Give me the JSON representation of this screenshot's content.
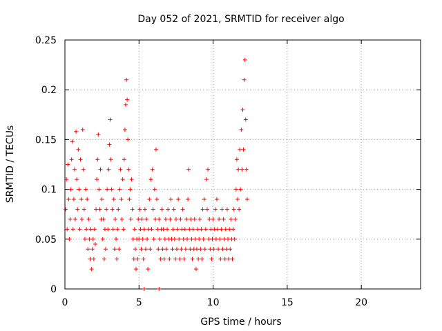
{
  "chart_data": {
    "type": "scatter",
    "title": "Day 052 of 2021, SRMTID for receiver algo",
    "xlabel": "GPS time / hours",
    "ylabel": "SRMTID / TECUs",
    "xlim": [
      0,
      24
    ],
    "ylim": [
      0,
      0.25
    ],
    "xticks": [
      0,
      5,
      10,
      15,
      20
    ],
    "xtick_labels": [
      "0",
      "5",
      "10",
      "15",
      "20"
    ],
    "yticks": [
      0,
      0.05,
      0.1,
      0.15,
      0.2,
      0.25
    ],
    "ytick_labels": [
      "0",
      "0.05",
      "0.1",
      "0.15",
      "0.2",
      "0.25"
    ],
    "grid": true,
    "marker": "+",
    "color": "#ff0000",
    "series": [
      {
        "name": "SRMTID",
        "points": [
          [
            0.05,
            0.08
          ],
          [
            0.1,
            0.11
          ],
          [
            0.15,
            0.06
          ],
          [
            0.2,
            0.125
          ],
          [
            0.25,
            0.09
          ],
          [
            0.3,
            0.05
          ],
          [
            0.35,
            0.07
          ],
          [
            0.4,
            0.1
          ],
          [
            0.45,
            0.13
          ],
          [
            0.5,
            0.148
          ],
          [
            0.55,
            0.06
          ],
          [
            0.6,
            0.09
          ],
          [
            0.65,
            0.12
          ],
          [
            0.7,
            0.07
          ],
          [
            0.75,
            0.158
          ],
          [
            0.8,
            0.11
          ],
          [
            0.85,
            0.08
          ],
          [
            0.9,
            0.14
          ],
          [
            0.95,
            0.1
          ],
          [
            1.0,
            0.06
          ],
          [
            1.05,
            0.13
          ],
          [
            1.1,
            0.09
          ],
          [
            1.15,
            0.07
          ],
          [
            1.2,
            0.16
          ],
          [
            1.25,
            0.12
          ],
          [
            1.3,
            0.08
          ],
          [
            1.35,
            0.05
          ],
          [
            1.4,
            0.1
          ],
          [
            1.45,
            0.06
          ],
          [
            1.5,
            0.09
          ],
          [
            1.55,
            0.04
          ],
          [
            1.6,
            0.07
          ],
          [
            1.65,
            0.05
          ],
          [
            1.7,
            0.03
          ],
          [
            1.75,
            0.06
          ],
          [
            1.8,
            0.02
          ],
          [
            1.85,
            0.04
          ],
          [
            1.9,
            0.05
          ],
          [
            1.95,
            0.03
          ],
          [
            2.0,
            0.06
          ],
          [
            2.05,
            0.045
          ],
          [
            2.1,
            0.08
          ],
          [
            2.15,
            0.11
          ],
          [
            2.2,
            0.13
          ],
          [
            2.25,
            0.155
          ],
          [
            2.3,
            0.1
          ],
          [
            2.35,
            0.08
          ],
          [
            2.4,
            0.12
          ],
          [
            2.45,
            0.07
          ],
          [
            2.5,
            0.09
          ],
          [
            2.55,
            0.05
          ],
          [
            2.6,
            0.07
          ],
          [
            2.65,
            0.03
          ],
          [
            2.7,
            0.06
          ],
          [
            2.75,
            0.04
          ],
          [
            2.8,
            0.08
          ],
          [
            2.85,
            0.1
          ],
          [
            2.9,
            0.06
          ],
          [
            2.95,
            0.12
          ],
          [
            3.0,
            0.145
          ],
          [
            3.05,
            0.17
          ],
          [
            3.1,
            0.13
          ],
          [
            3.15,
            0.1
          ],
          [
            3.2,
            0.08
          ],
          [
            3.25,
            0.06
          ],
          [
            3.3,
            0.09
          ],
          [
            3.35,
            0.04
          ],
          [
            3.4,
            0.07
          ],
          [
            3.45,
            0.05
          ],
          [
            3.5,
            0.03
          ],
          [
            3.55,
            0.06
          ],
          [
            3.6,
            0.08
          ],
          [
            3.65,
            0.04
          ],
          [
            3.7,
            0.1
          ],
          [
            3.75,
            0.12
          ],
          [
            3.8,
            0.09
          ],
          [
            3.85,
            0.07
          ],
          [
            3.9,
            0.11
          ],
          [
            3.95,
            0.06
          ],
          [
            4.0,
            0.13
          ],
          [
            4.05,
            0.16
          ],
          [
            4.1,
            0.185
          ],
          [
            4.15,
            0.21
          ],
          [
            4.2,
            0.19
          ],
          [
            4.25,
            0.15
          ],
          [
            4.3,
            0.12
          ],
          [
            4.35,
            0.09
          ],
          [
            4.4,
            0.1
          ],
          [
            4.45,
            0.07
          ],
          [
            4.5,
            0.11
          ],
          [
            4.55,
            0.08
          ],
          [
            4.6,
            0.05
          ],
          [
            4.65,
            0.03
          ],
          [
            4.7,
            0.06
          ],
          [
            4.75,
            0.04
          ],
          [
            4.8,
            0.02
          ],
          [
            4.85,
            0.05
          ],
          [
            4.9,
            0.03
          ],
          [
            4.95,
            0.07
          ],
          [
            5.0,
            0.05
          ],
          [
            5.05,
            0.08
          ],
          [
            5.1,
            0.06
          ],
          [
            5.15,
            0.04
          ],
          [
            5.2,
            0.07
          ],
          [
            5.25,
            0.05
          ],
          [
            5.3,
            0.03
          ],
          [
            5.35,
            0.06
          ],
          [
            5.4,
            0.08
          ],
          [
            5.45,
            0.04
          ],
          [
            5.5,
            0.07
          ],
          [
            5.55,
            0.05
          ],
          [
            5.6,
            0.02
          ],
          [
            5.65,
            0.06
          ],
          [
            5.7,
            0.09
          ],
          [
            5.75,
            0.04
          ],
          [
            5.8,
            0.11
          ],
          [
            5.85,
            0.06
          ],
          [
            5.9,
            0.12
          ],
          [
            5.95,
            0.08
          ],
          [
            6.0,
            0.05
          ],
          [
            6.05,
            0.1
          ],
          [
            6.1,
            0.07
          ],
          [
            6.15,
            0.14
          ],
          [
            6.2,
            0.09
          ],
          [
            6.25,
            0.06
          ],
          [
            6.3,
            0.04
          ],
          [
            6.35,
            0.07
          ],
          [
            6.4,
            0.05
          ],
          [
            6.45,
            0.03
          ],
          [
            6.5,
            0.06
          ],
          [
            6.55,
            0.08
          ],
          [
            6.6,
            0.04
          ],
          [
            6.65,
            0.06
          ],
          [
            6.7,
            0.03
          ],
          [
            6.75,
            0.05
          ],
          [
            6.8,
            0.07
          ],
          [
            6.85,
            0.04
          ],
          [
            6.9,
            0.06
          ],
          [
            6.95,
            0.08
          ],
          [
            7.0,
            0.05
          ],
          [
            7.05,
            0.03
          ],
          [
            7.1,
            0.07
          ],
          [
            7.15,
            0.09
          ],
          [
            7.2,
            0.05
          ],
          [
            7.25,
            0.04
          ],
          [
            7.3,
            0.06
          ],
          [
            7.35,
            0.08
          ],
          [
            7.4,
            0.05
          ],
          [
            7.45,
            0.03
          ],
          [
            7.5,
            0.07
          ],
          [
            7.55,
            0.04
          ],
          [
            7.6,
            0.06
          ],
          [
            7.65,
            0.09
          ],
          [
            7.7,
            0.05
          ],
          [
            7.75,
            0.03
          ],
          [
            7.8,
            0.07
          ],
          [
            7.85,
            0.04
          ],
          [
            7.9,
            0.06
          ],
          [
            7.95,
            0.08
          ],
          [
            8.0,
            0.05
          ],
          [
            8.05,
            0.03
          ],
          [
            8.1,
            0.06
          ],
          [
            8.15,
            0.04
          ],
          [
            8.2,
            0.07
          ],
          [
            8.25,
            0.05
          ],
          [
            8.3,
            0.09
          ],
          [
            8.35,
            0.12
          ],
          [
            8.4,
            0.06
          ],
          [
            8.45,
            0.04
          ],
          [
            8.5,
            0.07
          ],
          [
            8.55,
            0.05
          ],
          [
            8.6,
            0.03
          ],
          [
            8.65,
            0.06
          ],
          [
            8.7,
            0.04
          ],
          [
            8.75,
            0.07
          ],
          [
            8.8,
            0.05
          ],
          [
            8.85,
            0.02
          ],
          [
            8.9,
            0.04
          ],
          [
            8.95,
            0.06
          ],
          [
            9.0,
            0.03
          ],
          [
            9.05,
            0.05
          ],
          [
            9.1,
            0.07
          ],
          [
            9.15,
            0.04
          ],
          [
            9.2,
            0.06
          ],
          [
            9.25,
            0.03
          ],
          [
            9.3,
            0.08
          ],
          [
            9.35,
            0.05
          ],
          [
            9.4,
            0.09
          ],
          [
            9.45,
            0.04
          ],
          [
            9.5,
            0.06
          ],
          [
            9.55,
            0.11
          ],
          [
            9.6,
            0.08
          ],
          [
            9.65,
            0.12
          ],
          [
            9.7,
            0.05
          ],
          [
            9.75,
            0.07
          ],
          [
            9.8,
            0.04
          ],
          [
            9.85,
            0.06
          ],
          [
            9.9,
            0.03
          ],
          [
            9.95,
            0.05
          ],
          [
            10.0,
            0.07
          ],
          [
            10.05,
            0.04
          ],
          [
            10.1,
            0.06
          ],
          [
            10.15,
            0.08
          ],
          [
            10.2,
            0.05
          ],
          [
            10.25,
            0.09
          ],
          [
            10.3,
            0.06
          ],
          [
            10.35,
            0.04
          ],
          [
            10.4,
            0.07
          ],
          [
            10.45,
            0.05
          ],
          [
            10.5,
            0.03
          ],
          [
            10.55,
            0.06
          ],
          [
            10.6,
            0.08
          ],
          [
            10.65,
            0.04
          ],
          [
            10.7,
            0.07
          ],
          [
            10.75,
            0.05
          ],
          [
            10.8,
            0.03
          ],
          [
            10.85,
            0.06
          ],
          [
            10.9,
            0.04
          ],
          [
            10.95,
            0.08
          ],
          [
            11.0,
            0.05
          ],
          [
            11.05,
            0.03
          ],
          [
            11.1,
            0.06
          ],
          [
            11.15,
            0.04
          ],
          [
            11.2,
            0.07
          ],
          [
            11.25,
            0.05
          ],
          [
            11.3,
            0.03
          ],
          [
            11.35,
            0.06
          ],
          [
            11.4,
            0.08
          ],
          [
            11.45,
            0.05
          ],
          [
            11.5,
            0.07
          ],
          [
            11.55,
            0.1
          ],
          [
            11.6,
            0.13
          ],
          [
            11.65,
            0.09
          ],
          [
            11.7,
            0.12
          ],
          [
            11.75,
            0.08
          ],
          [
            11.8,
            0.14
          ],
          [
            11.85,
            0.1
          ],
          [
            11.9,
            0.16
          ],
          [
            11.95,
            0.12
          ],
          [
            12.0,
            0.18
          ],
          [
            12.05,
            0.14
          ],
          [
            12.1,
            0.21
          ],
          [
            12.15,
            0.23
          ],
          [
            12.2,
            0.17
          ],
          [
            12.25,
            0.12
          ],
          [
            12.3,
            0.09
          ],
          [
            5.35,
            0.0
          ],
          [
            6.35,
            0.0
          ]
        ]
      }
    ]
  }
}
